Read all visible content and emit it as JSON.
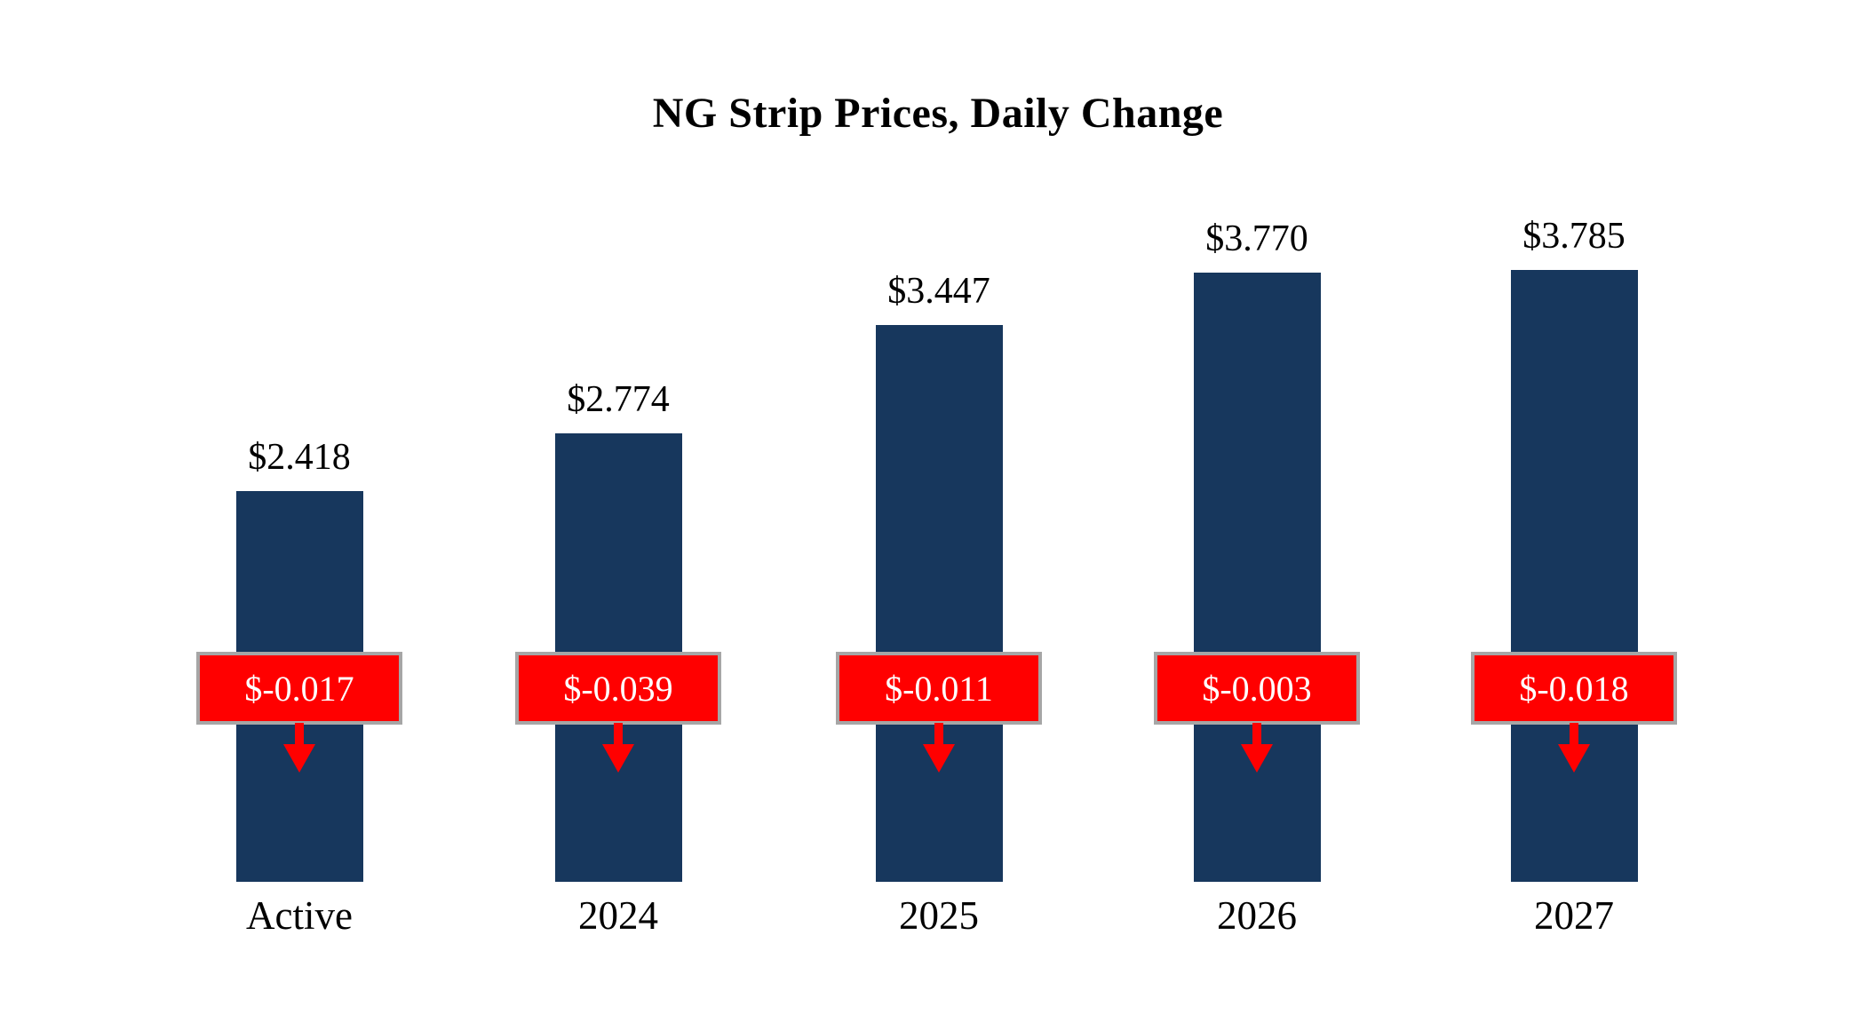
{
  "title": "NG Strip Prices, Daily Change",
  "chart_data": {
    "type": "bar",
    "title": "NG Strip Prices, Daily Change",
    "categories": [
      "Active",
      "2024",
      "2025",
      "2026",
      "2027"
    ],
    "series": [
      {
        "name": "Strip Price",
        "values": [
          2.418,
          2.774,
          3.447,
          3.77,
          3.785
        ]
      },
      {
        "name": "Daily Change",
        "values": [
          -0.017,
          -0.039,
          -0.011,
          -0.003,
          -0.018
        ]
      }
    ],
    "value_labels": [
      "$2.418",
      "$2.774",
      "$3.447",
      "$3.770",
      "$3.785"
    ],
    "change_labels": [
      "$-0.017",
      "$-0.039",
      "$-0.011",
      "$-0.003",
      "$-0.018"
    ],
    "xlabel": "",
    "ylabel": "",
    "ylim": [
      0,
      4.2
    ],
    "grid": false,
    "legend": "none",
    "axes_visible": false,
    "colors": {
      "bar": "#17375D",
      "badge_bg": "#FF0000",
      "badge_border": "#A6A6A6",
      "badge_text": "#FFFFFF",
      "arrow": "#FF0000",
      "text": "#000000",
      "background": "#FFFFFF"
    }
  }
}
